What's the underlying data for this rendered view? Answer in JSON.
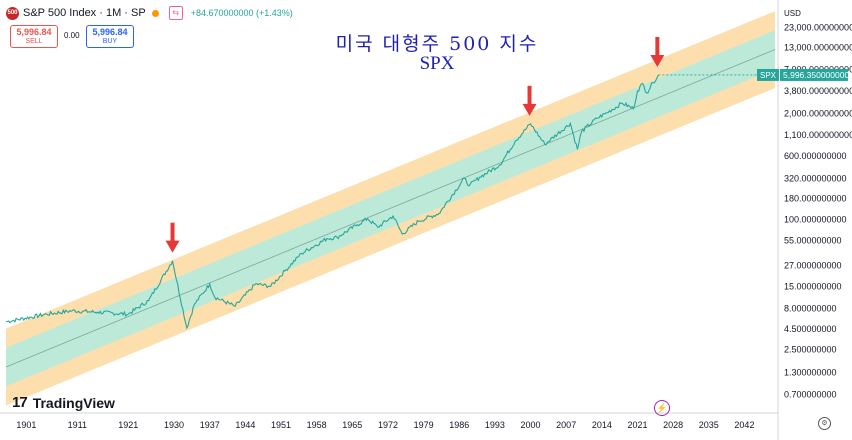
{
  "header": {
    "symbol_title": "S&P 500 Index · 1M · SP",
    "logo_text": "500",
    "change_text": "+84.670000000 (+1.43%)"
  },
  "trade": {
    "sell_price": "5,996.84",
    "sell_label": "SELL",
    "spread": "0.00",
    "buy_price": "5,996.84",
    "buy_label": "BUY"
  },
  "title_korean": "미국 대형주 500 지수",
  "title_symbol": "SPX",
  "brand": "TradingView",
  "currency": "USD",
  "last_price_tag": {
    "symbol": "SPX",
    "value": "5,996.350000000"
  },
  "colors": {
    "price_line": "#26a69a",
    "inner_band": "#b2ebe0",
    "outer_band": "#fdd9a0",
    "arrow": "#e53935",
    "title": "#1e1eb4"
  },
  "icons": [
    "tradingview-logo-icon",
    "gear-icon",
    "flash-icon",
    "arrow-down-icon",
    "settings-icon"
  ],
  "chart_data": {
    "type": "line",
    "scale": "log",
    "x_ticks": [
      "1901",
      "1911",
      "1921",
      "1930",
      "1937",
      "1944",
      "1951",
      "1958",
      "1965",
      "1972",
      "1979",
      "1986",
      "1993",
      "2000",
      "2007",
      "2014",
      "2021",
      "2028",
      "2035",
      "2042"
    ],
    "x_range": [
      1897,
      2048
    ],
    "y_ticks": [
      "23,000.000000000",
      "13,000.000000000",
      "7,000.000000000",
      "3,800.000000000",
      "2,000.000000000",
      "1,100.000000000",
      "600.000000000",
      "320.000000000",
      "180.000000000",
      "100.000000000",
      "55.000000000",
      "27.000000000",
      "15.000000000",
      "8.000000000",
      "4.500000000",
      "2.500000000",
      "1.300000000",
      "0.700000000"
    ],
    "y_range": [
      0.5,
      30000
    ],
    "regression": {
      "channel_steps": [
        1,
        2
      ]
    },
    "series": [
      {
        "x": [
          1897,
          1905,
          1910,
          1915,
          1921,
          1925,
          1929.7,
          1932.5,
          1934,
          1937,
          1938,
          1942,
          1946,
          1949,
          1952,
          1955,
          1960,
          1962,
          1966,
          1968,
          1970,
          1973,
          1974.8,
          1978,
          1982,
          1987,
          1988,
          1990,
          1994,
          1997,
          2000,
          2002.8,
          2007.8,
          2009.2,
          2010,
          2013,
          2015,
          2018,
          2020.2,
          2021,
          2022,
          2022.8,
          2024,
          2025.1
        ],
        "y": [
          5.5,
          6.8,
          7.5,
          7.2,
          6.8,
          10,
          31,
          4.6,
          9,
          16,
          11,
          8.5,
          16,
          15,
          24,
          38,
          58,
          60,
          86,
          102,
          80,
          110,
          66,
          95,
          118,
          320,
          260,
          330,
          470,
          920,
          1500,
          840,
          1520,
          730,
          1200,
          1750,
          2050,
          2700,
          2300,
          3800,
          4700,
          3600,
          4800,
          5996
        ]
      }
    ],
    "annotations": [
      {
        "type": "arrow-down",
        "x": 1929.7
      },
      {
        "type": "arrow-down",
        "x": 1999.8
      },
      {
        "type": "arrow-down",
        "x": 2024.9
      }
    ]
  }
}
